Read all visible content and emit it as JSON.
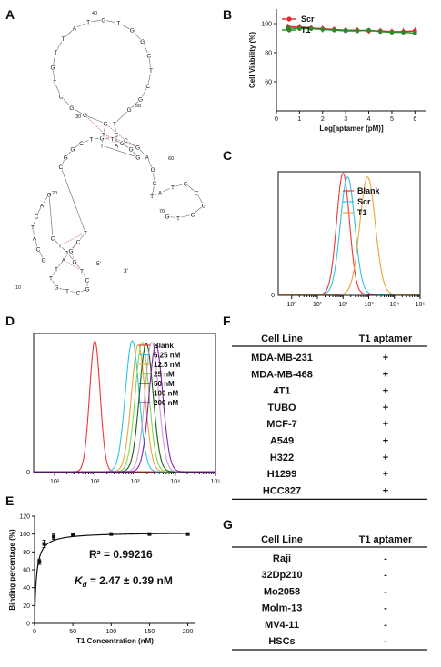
{
  "panels": {
    "A": {
      "label": "A",
      "sequence": "GCATCAGCTTGTCGCTGTTAGCTCGGCTGTGGGTTGGGCTGTTATGTGGCTCGGTCACGAGCTATCCGCTG",
      "position_labels": [
        "10",
        "20",
        "30",
        "40",
        "50",
        "60",
        "70"
      ],
      "end_labels": [
        "5'",
        "3'"
      ]
    },
    "B": {
      "label": "B"
    },
    "C": {
      "label": "C"
    },
    "D": {
      "label": "D"
    },
    "E": {
      "label": "E",
      "r2_text": "R² = 0.99216",
      "kd_symbol": "K",
      "kd_sub": "d",
      "kd_value": " = 2.47 ± 0.39 nM"
    },
    "F": {
      "label": "F",
      "header": [
        "Cell Line",
        "T1 aptamer"
      ],
      "rows": [
        [
          "MDA-MB-231",
          "+"
        ],
        [
          "MDA-MB-468",
          "+"
        ],
        [
          "4T1",
          "+"
        ],
        [
          "TUBO",
          "+"
        ],
        [
          "MCF-7",
          "+"
        ],
        [
          "A549",
          "+"
        ],
        [
          "H322",
          "+"
        ],
        [
          "H1299",
          "+"
        ],
        [
          "HCC827",
          "+"
        ]
      ]
    },
    "G": {
      "label": "G",
      "header": [
        "Cell Line",
        "T1 aptamer"
      ],
      "rows": [
        [
          "Raji",
          "-"
        ],
        [
          "32Dp210",
          "-"
        ],
        [
          "Mo2058",
          "-"
        ],
        [
          "Molm-13",
          "-"
        ],
        [
          "MV4-11",
          "-"
        ],
        [
          "HSCs",
          "-"
        ]
      ]
    }
  },
  "chart_data": [
    {
      "panel": "B",
      "type": "line",
      "xlabel": "Log[aptamer (pM)]",
      "ylabel": "Cell Viability (%)",
      "xlim": [
        0,
        6.5
      ],
      "ylim": [
        40,
        110
      ],
      "xticks": [
        "0",
        "1",
        "2",
        "3",
        "4",
        "5",
        "6"
      ],
      "yticks": [
        "60",
        "80",
        "100"
      ],
      "legend": "top-left",
      "series": [
        {
          "name": "Scr",
          "color": "#e8262a",
          "x": [
            0.5,
            1,
            1.5,
            2,
            2.5,
            3,
            3.5,
            4,
            4.5,
            5,
            5.5,
            6
          ],
          "y": [
            98,
            97.5,
            97,
            96.5,
            96,
            95.5,
            95.5,
            95,
            95,
            94.5,
            94.5,
            95
          ],
          "err": [
            2,
            2.5,
            2,
            2.5,
            2,
            2,
            2,
            2,
            2,
            2,
            2.5,
            2.5
          ]
        },
        {
          "name": "T1",
          "color": "#2a8a2a",
          "x": [
            0.5,
            1,
            1.5,
            2,
            2.5,
            3,
            3.5,
            4,
            4.5,
            5,
            5.5,
            6
          ],
          "y": [
            97,
            96.5,
            96.5,
            96,
            95.5,
            95,
            95,
            95.5,
            94.5,
            94,
            94,
            93.5
          ],
          "err": [
            1.5,
            1.5,
            1.5,
            1.5,
            1.5,
            1.5,
            1.5,
            1.5,
            1.5,
            1.5,
            1.5,
            1.5
          ]
        }
      ]
    },
    {
      "panel": "C",
      "type": "line",
      "xscale": "log",
      "xlim": [
        0.3,
        100000
      ],
      "xticks": [
        "10⁰",
        "10¹",
        "10²",
        "10³",
        "10⁴",
        "10⁵"
      ],
      "ytick_zero": "0",
      "legend": "top-right",
      "series": [
        {
          "name": "Blank",
          "color": "#e8393d",
          "peak": 100,
          "width": 0.25,
          "height": 1.0
        },
        {
          "name": "Scr",
          "color": "#2fc4e6",
          "peak": 150,
          "width": 0.28,
          "height": 0.97
        },
        {
          "name": "T1",
          "color": "#f0a23a",
          "peak": 900,
          "width": 0.3,
          "height": 0.97
        }
      ]
    },
    {
      "panel": "D",
      "type": "line",
      "xscale": "log",
      "xlim": [
        3,
        100000
      ],
      "xticks": [
        "10¹",
        "10²",
        "10³",
        "10⁴",
        "10⁵"
      ],
      "ytick_zero": "0",
      "legend": "top-right",
      "series": [
        {
          "name": "Blank",
          "color": "#e8393d",
          "peak": 100,
          "width": 0.13,
          "height": 0.96
        },
        {
          "name": "6.25 nM",
          "color": "#2fc4e6",
          "peak": 850,
          "width": 0.17,
          "height": 0.96
        },
        {
          "name": "12.5 nM",
          "color": "#f0a23a",
          "peak": 1200,
          "width": 0.17,
          "height": 0.93
        },
        {
          "name": "25 nM",
          "color": "#7ed957",
          "peak": 1500,
          "width": 0.17,
          "height": 0.95
        },
        {
          "name": "50 nM",
          "color": "#1e5a18",
          "peak": 1900,
          "width": 0.17,
          "height": 0.94
        },
        {
          "name": "100 nM",
          "color": "#c8a0cf",
          "peak": 2600,
          "width": 0.17,
          "height": 0.95
        },
        {
          "name": "200 nM",
          "color": "#8a1fb0",
          "peak": 3300,
          "width": 0.17,
          "height": 0.93
        }
      ]
    },
    {
      "panel": "E",
      "type": "scatter",
      "xlabel": "T1 Concentration (nM)",
      "ylabel": "Binding percentage (%)",
      "xlim": [
        0,
        210
      ],
      "ylim": [
        0,
        120
      ],
      "xticks": [
        "0",
        "50",
        "100",
        "150",
        "200"
      ],
      "yticks": [
        "0",
        "20",
        "40",
        "60",
        "80",
        "100",
        "120"
      ],
      "x": [
        6.25,
        12.5,
        25,
        50,
        100,
        150,
        200
      ],
      "y": [
        69,
        89,
        97,
        99,
        100,
        100,
        100
      ],
      "err": [
        3,
        4,
        3,
        1.5,
        1,
        1,
        1
      ],
      "fit": {
        "model": "one-site binding",
        "bmax": 102,
        "kd": 2.47
      }
    }
  ]
}
